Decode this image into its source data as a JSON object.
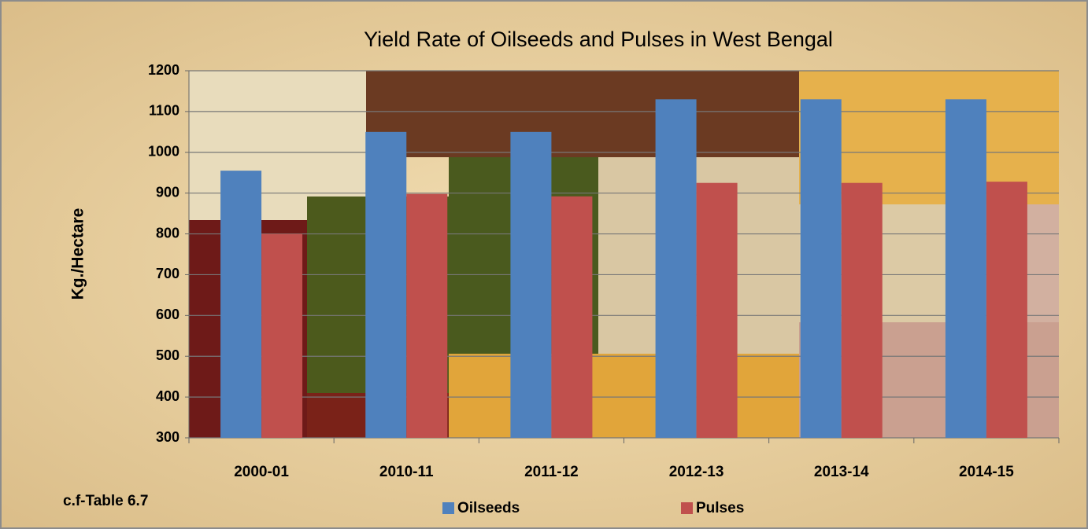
{
  "chart_data": {
    "type": "bar",
    "title": "Yield Rate of Oilseeds and Pulses in West Bengal",
    "y_label": "Kg./Hectare",
    "annotation": "c.f-Table 6.7",
    "categories": [
      "2000-01",
      "2010-11",
      "2011-12",
      "2012-13",
      "2013-14",
      "2014-15"
    ],
    "series": [
      {
        "name": "Oilseeds",
        "color": "#4f81bd",
        "values": [
          955,
          1050,
          1050,
          1130,
          1130,
          1130
        ]
      },
      {
        "name": "Pulses",
        "color": "#c0504d",
        "values": [
          800,
          898,
          892,
          925,
          925,
          928
        ]
      }
    ],
    "ylim": [
      300,
      1200
    ],
    "yticks": [
      300,
      400,
      500,
      600,
      700,
      800,
      900,
      1000,
      1100,
      1200
    ],
    "grid": true,
    "legend": "bottom"
  }
}
